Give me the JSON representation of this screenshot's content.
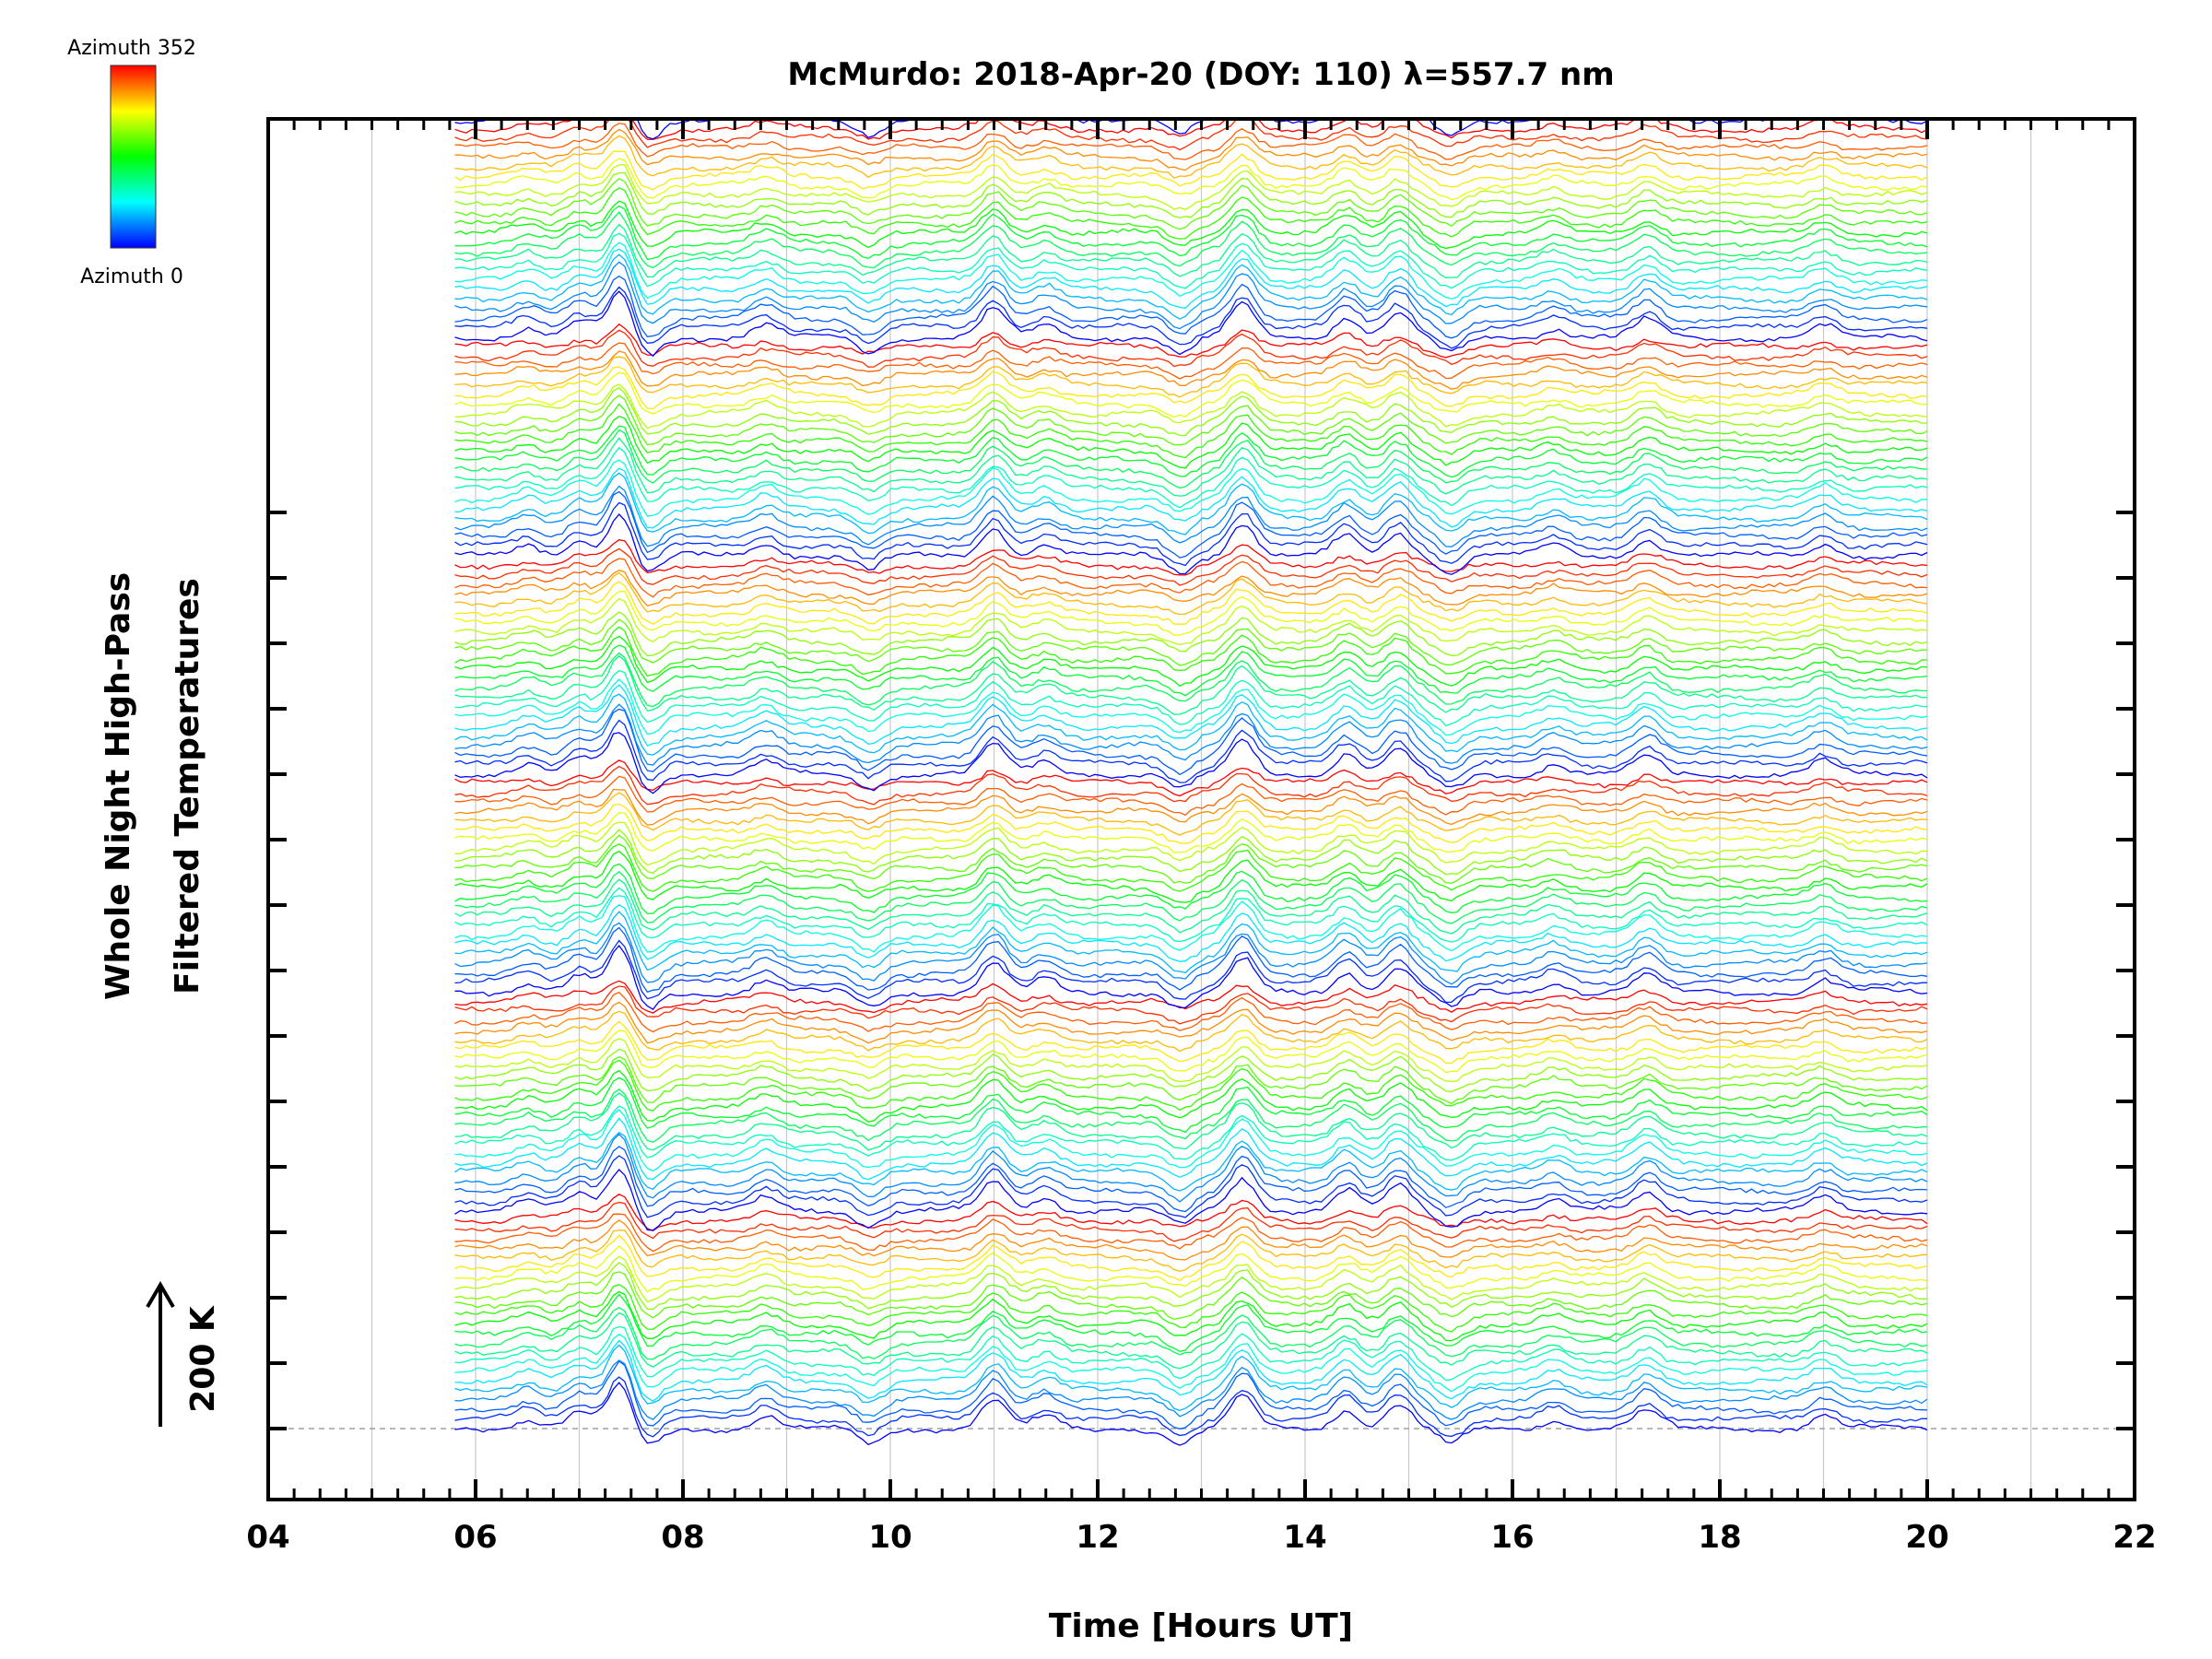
{
  "chart_data": {
    "type": "line",
    "title": "McMurdo: 2018-Apr-20 (DOY: 110) λ=557.7 nm",
    "xlabel": "Time [Hours UT]",
    "ylabel_line1": "Whole Night High-Pass",
    "ylabel_line2": "Filtered Temperatures",
    "scale_label": "200 K",
    "x_range": [
      4,
      22
    ],
    "x_ticks": [
      "04",
      "06",
      "08",
      "10",
      "12",
      "14",
      "16",
      "18",
      "20",
      "22"
    ],
    "data_x_range": [
      5.8,
      20.0
    ],
    "num_traces": 139,
    "trace_spacing_K": 14.5,
    "colorbar": {
      "top_label": "Azimuth  352",
      "bottom_label": "Azimuth  0",
      "azimuth_range": [
        0,
        352
      ],
      "colormap": [
        "#0000ff",
        "#00ffff",
        "#00ff00",
        "#ffff00",
        "#ff0000"
      ]
    },
    "common_features": [
      {
        "time_h": 6.5,
        "amplitude_K": 12
      },
      {
        "time_h": 7.0,
        "amplitude_K": 20
      },
      {
        "time_h": 7.4,
        "amplitude_K": 55
      },
      {
        "time_h": 7.65,
        "amplitude_K": -25
      },
      {
        "time_h": 8.8,
        "amplitude_K": 15
      },
      {
        "time_h": 9.8,
        "amplitude_K": -18
      },
      {
        "time_h": 11.0,
        "amplitude_K": 35
      },
      {
        "time_h": 11.5,
        "amplitude_K": 15
      },
      {
        "time_h": 12.8,
        "amplitude_K": -20
      },
      {
        "time_h": 13.4,
        "amplitude_K": 40
      },
      {
        "time_h": 14.4,
        "amplitude_K": 25
      },
      {
        "time_h": 14.9,
        "amplitude_K": 30
      },
      {
        "time_h": 15.4,
        "amplitude_K": -20
      },
      {
        "time_h": 16.4,
        "amplitude_K": 12
      },
      {
        "time_h": 17.3,
        "amplitude_K": 22
      },
      {
        "time_h": 19.0,
        "amplitude_K": 15
      }
    ],
    "grid_x_hours": [
      5,
      6,
      7,
      8,
      9,
      10,
      11,
      12,
      13,
      14,
      15,
      16,
      17,
      18,
      19,
      20,
      21
    ]
  },
  "colors": {
    "axis": "#000000",
    "grid": "#c8c8c8",
    "baseline": "#a0a0a0"
  }
}
